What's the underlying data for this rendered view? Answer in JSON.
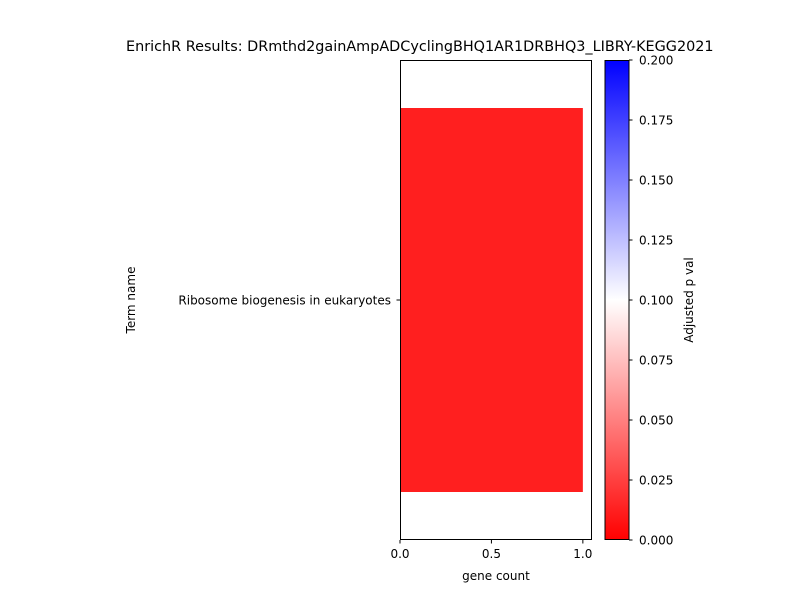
{
  "chart_data": {
    "type": "bar",
    "orientation": "horizontal",
    "title": "EnrichR Results: DRmthd2gainAmpADCyclingBHQ1AR1DRBHQ3_LIBRY-KEGG2021",
    "xlabel": "gene count",
    "ylabel": "Term name",
    "categories": [
      "Ribosome biogenesis in eukaryotes"
    ],
    "values": [
      1
    ],
    "adjusted_p_values": [
      0.012
    ],
    "xlim": [
      0,
      1.05
    ],
    "xticks": [
      0.0,
      0.5,
      1.0
    ],
    "xtick_labels": [
      "0.0",
      "0.5",
      "1.0"
    ],
    "grid": false,
    "colorbar": {
      "label": "Adjusted p val",
      "range": [
        0,
        0.2
      ],
      "colormap": "bwr_r",
      "colors": [
        "#ff0000",
        "#ffffff",
        "#0000ff"
      ],
      "ticks": [
        0.0,
        0.025,
        0.05,
        0.075,
        0.1,
        0.125,
        0.15,
        0.175,
        0.2
      ],
      "tick_labels": [
        "0.000",
        "0.025",
        "0.050",
        "0.075",
        "0.100",
        "0.125",
        "0.150",
        "0.175",
        "0.200"
      ]
    }
  }
}
